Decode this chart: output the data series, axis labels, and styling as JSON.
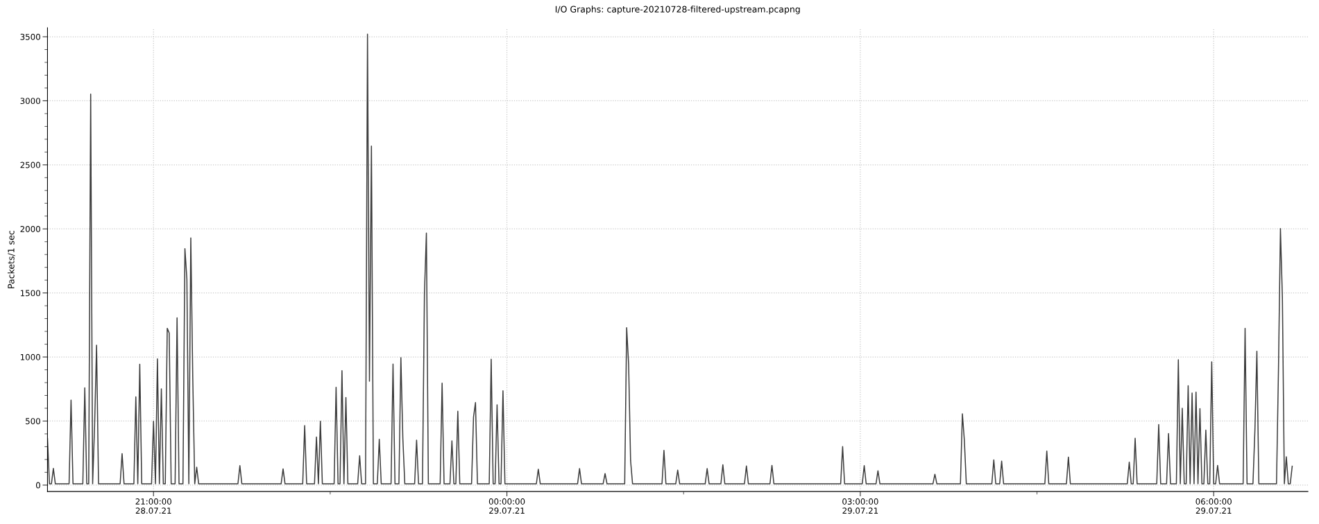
{
  "chart_data": {
    "type": "line",
    "title": "I/O Graphs: capture-20210728-filtered-upstream.pcapng",
    "ylabel": "Packets/1 sec",
    "series": [
      {
        "color": "#3c3c3c",
        "x": [
          "2021-07-28T20:06",
          "2021-07-28T20:07",
          "2021-07-28T20:08",
          "2021-07-28T20:09",
          "2021-07-28T20:10",
          "2021-07-28T20:17",
          "2021-07-28T20:18",
          "2021-07-28T20:19",
          "2021-07-28T20:24",
          "2021-07-28T20:25",
          "2021-07-28T20:26",
          "2021-07-28T20:27",
          "2021-07-28T20:28",
          "2021-07-28T20:29",
          "2021-07-28T20:30",
          "2021-07-28T20:31",
          "2021-07-28T20:32",
          "2021-07-28T20:43",
          "2021-07-28T20:44",
          "2021-07-28T20:45",
          "2021-07-28T20:50",
          "2021-07-28T20:51",
          "2021-07-28T20:52",
          "2021-07-28T20:53",
          "2021-07-28T20:54",
          "2021-07-28T20:59",
          "2021-07-28T21:00",
          "2021-07-28T21:01",
          "2021-07-28T21:02",
          "2021-07-28T21:03",
          "2021-07-28T21:04",
          "2021-07-28T21:05",
          "2021-07-28T21:06",
          "2021-07-28T21:07",
          "2021-07-28T21:08",
          "2021-07-28T21:09",
          "2021-07-28T21:11",
          "2021-07-28T21:12",
          "2021-07-28T21:13",
          "2021-07-28T21:15",
          "2021-07-28T21:16",
          "2021-07-28T21:17",
          "2021-07-28T21:18",
          "2021-07-28T21:19",
          "2021-07-28T21:20",
          "2021-07-28T21:21",
          "2021-07-28T21:22",
          "2021-07-28T21:23",
          "2021-07-28T21:43",
          "2021-07-28T21:44",
          "2021-07-28T21:45",
          "2021-07-28T22:05",
          "2021-07-28T22:06",
          "2021-07-28T22:07",
          "2021-07-28T22:16",
          "2021-07-28T22:17",
          "2021-07-28T22:18",
          "2021-07-28T22:22",
          "2021-07-28T22:23",
          "2021-07-28T22:24",
          "2021-07-28T22:25",
          "2021-07-28T22:26",
          "2021-07-28T22:32",
          "2021-07-28T22:33",
          "2021-07-28T22:34",
          "2021-07-28T22:35",
          "2021-07-28T22:36",
          "2021-07-28T22:37",
          "2021-07-28T22:38",
          "2021-07-28T22:39",
          "2021-07-28T22:44",
          "2021-07-28T22:45",
          "2021-07-28T22:46",
          "2021-07-28T22:48",
          "2021-07-28T22:49",
          "2021-07-28T22:50",
          "2021-07-28T22:51",
          "2021-07-28T22:52",
          "2021-07-28T22:54",
          "2021-07-28T22:55",
          "2021-07-28T22:56",
          "2021-07-28T23:01",
          "2021-07-28T23:02",
          "2021-07-28T23:03",
          "2021-07-28T23:05",
          "2021-07-28T23:06",
          "2021-07-28T23:07",
          "2021-07-28T23:08",
          "2021-07-28T23:13",
          "2021-07-28T23:14",
          "2021-07-28T23:15",
          "2021-07-28T23:17",
          "2021-07-28T23:18",
          "2021-07-28T23:19",
          "2021-07-28T23:20",
          "2021-07-28T23:26",
          "2021-07-28T23:27",
          "2021-07-28T23:28",
          "2021-07-28T23:31",
          "2021-07-28T23:32",
          "2021-07-28T23:33",
          "2021-07-28T23:34",
          "2021-07-28T23:35",
          "2021-07-28T23:36",
          "2021-07-28T23:42",
          "2021-07-28T23:43",
          "2021-07-28T23:44",
          "2021-07-28T23:45",
          "2021-07-28T23:51",
          "2021-07-28T23:52",
          "2021-07-28T23:53",
          "2021-07-28T23:54",
          "2021-07-28T23:55",
          "2021-07-28T23:56",
          "2021-07-28T23:57",
          "2021-07-28T23:58",
          "2021-07-28T23:59",
          "2021-07-29T00:15",
          "2021-07-29T00:16",
          "2021-07-29T00:17",
          "2021-07-29T00:36",
          "2021-07-29T00:37",
          "2021-07-29T00:38",
          "2021-07-29T00:49",
          "2021-07-29T00:50",
          "2021-07-29T00:51",
          "2021-07-29T01:00",
          "2021-07-29T01:01",
          "2021-07-29T01:02",
          "2021-07-29T01:03",
          "2021-07-29T01:04",
          "2021-07-29T01:19",
          "2021-07-29T01:20",
          "2021-07-29T01:21",
          "2021-07-29T01:26",
          "2021-07-29T01:27",
          "2021-07-29T01:28",
          "2021-07-29T01:41",
          "2021-07-29T01:42",
          "2021-07-29T01:43",
          "2021-07-29T01:49",
          "2021-07-29T01:50",
          "2021-07-29T01:51",
          "2021-07-29T02:01",
          "2021-07-29T02:02",
          "2021-07-29T02:03",
          "2021-07-29T02:14",
          "2021-07-29T02:15",
          "2021-07-29T02:16",
          "2021-07-29T02:50",
          "2021-07-29T02:51",
          "2021-07-29T02:52",
          "2021-07-29T03:01",
          "2021-07-29T03:02",
          "2021-07-29T03:03",
          "2021-07-29T03:08",
          "2021-07-29T03:09",
          "2021-07-29T03:10",
          "2021-07-29T03:37",
          "2021-07-29T03:38",
          "2021-07-29T03:39",
          "2021-07-29T03:51",
          "2021-07-29T03:52",
          "2021-07-29T03:53",
          "2021-07-29T03:54",
          "2021-07-29T04:07",
          "2021-07-29T04:08",
          "2021-07-29T04:09",
          "2021-07-29T04:11",
          "2021-07-29T04:12",
          "2021-07-29T04:13",
          "2021-07-29T04:34",
          "2021-07-29T04:35",
          "2021-07-29T04:36",
          "2021-07-29T04:45",
          "2021-07-29T04:46",
          "2021-07-29T04:47",
          "2021-07-29T05:16",
          "2021-07-29T05:17",
          "2021-07-29T05:18",
          "2021-07-29T05:19",
          "2021-07-29T05:20",
          "2021-07-29T05:21",
          "2021-07-29T05:31",
          "2021-07-29T05:32",
          "2021-07-29T05:33",
          "2021-07-29T05:36",
          "2021-07-29T05:37",
          "2021-07-29T05:38",
          "2021-07-29T05:41",
          "2021-07-29T05:42",
          "2021-07-29T05:43",
          "2021-07-29T05:44",
          "2021-07-29T05:45",
          "2021-07-29T05:46",
          "2021-07-29T05:47",
          "2021-07-29T05:48",
          "2021-07-29T05:49",
          "2021-07-29T05:50",
          "2021-07-29T05:51",
          "2021-07-29T05:52",
          "2021-07-29T05:53",
          "2021-07-29T05:54",
          "2021-07-29T05:55",
          "2021-07-29T05:56",
          "2021-07-29T05:57",
          "2021-07-29T05:58",
          "2021-07-29T05:59",
          "2021-07-29T06:00",
          "2021-07-29T06:01",
          "2021-07-29T06:02",
          "2021-07-29T06:03",
          "2021-07-29T06:15",
          "2021-07-29T06:16",
          "2021-07-29T06:17",
          "2021-07-29T06:20",
          "2021-07-29T06:21",
          "2021-07-29T06:22",
          "2021-07-29T06:23",
          "2021-07-29T06:32",
          "2021-07-29T06:33",
          "2021-07-29T06:34",
          "2021-07-29T06:35",
          "2021-07-29T06:36",
          "2021-07-29T06:37",
          "2021-07-29T06:38",
          "2021-07-29T06:39",
          "2021-07-29T06:40"
        ],
        "values": [
          365,
          10,
          10,
          130,
          10,
          10,
          664,
          10,
          10,
          759,
          10,
          10,
          3052,
          10,
          465,
          1092,
          10,
          10,
          246,
          10,
          10,
          689,
          10,
          943,
          10,
          10,
          498,
          10,
          985,
          10,
          751,
          10,
          10,
          1224,
          1187,
          10,
          10,
          1306,
          10,
          10,
          1846,
          1609,
          10,
          1930,
          838,
          10,
          140,
          10,
          10,
          152,
          10,
          10,
          127,
          10,
          10,
          465,
          10,
          10,
          376,
          10,
          498,
          10,
          10,
          764,
          10,
          10,
          893,
          10,
          684,
          10,
          10,
          229,
          10,
          10,
          3520,
          811,
          2647,
          10,
          10,
          358,
          10,
          10,
          945,
          10,
          10,
          995,
          366,
          10,
          10,
          351,
          10,
          10,
          1498,
          1968,
          10,
          10,
          796,
          10,
          10,
          346,
          10,
          10,
          577,
          10,
          10,
          530,
          644,
          10,
          10,
          983,
          10,
          10,
          627,
          10,
          10,
          736,
          10,
          10,
          124,
          10,
          10,
          129,
          10,
          10,
          90,
          10,
          10,
          1229,
          943,
          192,
          10,
          10,
          271,
          10,
          10,
          117,
          10,
          10,
          129,
          10,
          10,
          159,
          10,
          10,
          149,
          10,
          10,
          154,
          10,
          10,
          301,
          10,
          10,
          152,
          10,
          10,
          112,
          10,
          10,
          85,
          10,
          10,
          557,
          351,
          10,
          10,
          197,
          10,
          10,
          187,
          10,
          10,
          266,
          10,
          10,
          219,
          10,
          10,
          179,
          10,
          10,
          366,
          10,
          10,
          473,
          10,
          10,
          403,
          10,
          10,
          978,
          10,
          600,
          10,
          10,
          776,
          10,
          719,
          10,
          726,
          10,
          597,
          10,
          10,
          430,
          10,
          10,
          963,
          10,
          10,
          154,
          10,
          10,
          1224,
          10,
          10,
          428,
          1045,
          10,
          10,
          900,
          2003,
          1460,
          10,
          221,
          10,
          10,
          147
        ]
      }
    ],
    "xlim": [
      "2021-07-28T20:06",
      "2021-07-29T06:48"
    ],
    "xticks": [
      {
        "value": "2021-07-28T21:00",
        "label": "21:00:00\n28.07.21"
      },
      {
        "value": "2021-07-28T22:30",
        "label": null
      },
      {
        "value": "2021-07-29T00:00",
        "label": "00:00:00\n29.07.21"
      },
      {
        "value": "2021-07-29T01:30",
        "label": null
      },
      {
        "value": "2021-07-29T03:00",
        "label": "03:00:00\n29.07.21"
      },
      {
        "value": "2021-07-29T04:30",
        "label": null
      },
      {
        "value": "2021-07-29T06:00",
        "label": "06:00:00\n29.07.21"
      }
    ],
    "ylim": [
      -50,
      3570
    ],
    "yticks": [
      0,
      {
        "value": 100,
        "label": null
      },
      {
        "value": 200,
        "label": null
      },
      {
        "value": 300,
        "label": null
      },
      {
        "value": 400,
        "label": null
      },
      500,
      {
        "value": 600,
        "label": null
      },
      {
        "value": 700,
        "label": null
      },
      {
        "value": 800,
        "label": null
      },
      {
        "value": 900,
        "label": null
      },
      1000,
      {
        "value": 1100,
        "label": null
      },
      {
        "value": 1200,
        "label": null
      },
      {
        "value": 1300,
        "label": null
      },
      {
        "value": 1400,
        "label": null
      },
      1500,
      {
        "value": 1600,
        "label": null
      },
      {
        "value": 1700,
        "label": null
      },
      {
        "value": 1800,
        "label": null
      },
      {
        "value": 1900,
        "label": null
      },
      2000,
      {
        "value": 2100,
        "label": null
      },
      {
        "value": 2200,
        "label": null
      },
      {
        "value": 2300,
        "label": null
      },
      {
        "value": 2400,
        "label": null
      },
      2500,
      {
        "value": 2600,
        "label": null
      },
      {
        "value": 2700,
        "label": null
      },
      {
        "value": 2800,
        "label": null
      },
      {
        "value": 2900,
        "label": null
      },
      3000,
      {
        "value": 3100,
        "label": null
      },
      {
        "value": 3200,
        "label": null
      },
      {
        "value": 3300,
        "label": null
      },
      {
        "value": 3400,
        "label": null
      },
      3500
    ],
    "grid": true,
    "marker": "none",
    "line_style": "solid"
  }
}
